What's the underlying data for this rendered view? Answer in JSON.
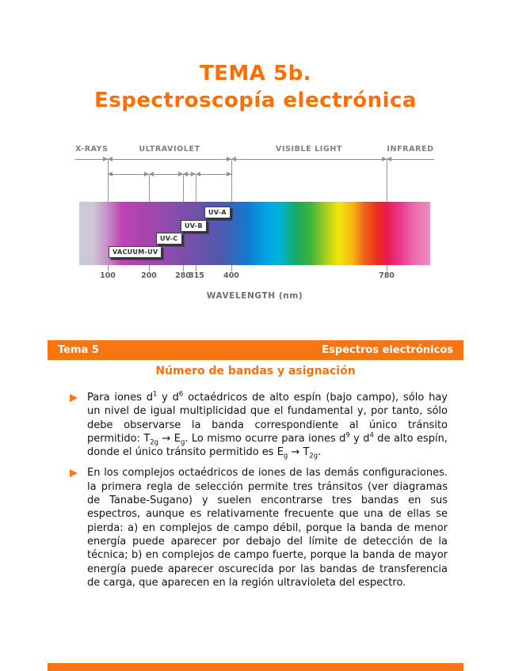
{
  "colors": {
    "accent_orange": "#f87514",
    "title_orange": "#ff6e05",
    "diagram_gray": "#8f8f93"
  },
  "title": {
    "line1": "TEMA 5b.",
    "line2": "Espectroscopía electrónica"
  },
  "spectrum": {
    "region_labels": [
      "X-RAYS",
      "ULTRAVIOLET",
      "VISIBLE LIGHT",
      "INFRARED"
    ],
    "uv_bands": [
      "VACUUM-UV",
      "UV-C",
      "UV-B",
      "UV-A"
    ],
    "ticks": [
      "100",
      "200",
      "280",
      "315",
      "400",
      "780"
    ],
    "caption": "WAVELENGTH (nm)"
  },
  "section_bar": {
    "left": "Tema 5",
    "right": "Espectros electrónicos"
  },
  "section_heading": "Número de bandas y asignación",
  "bullets": [
    {
      "segments": [
        {
          "t": "Para iones d"
        },
        {
          "t": "1",
          "s": "sup"
        },
        {
          "t": " y d"
        },
        {
          "t": "6",
          "s": "sup"
        },
        {
          "t": " octaédricos de alto espín (bajo campo), sólo hay un nivel de igual multiplicidad que el fundamental y, por tanto, sólo debe observarse la banda correspondiente al único tránsito permitido: T"
        },
        {
          "t": "2g",
          "s": "sub"
        },
        {
          "t": " → E"
        },
        {
          "t": "g",
          "s": "sub"
        },
        {
          "t": ". Lo mismo ocurre para iones d"
        },
        {
          "t": "9",
          "s": "sup"
        },
        {
          "t": " y d"
        },
        {
          "t": "4",
          "s": "sup"
        },
        {
          "t": " de alto espín, donde el único tránsito permitido es E"
        },
        {
          "t": "g",
          "s": "sub"
        },
        {
          "t": " → T"
        },
        {
          "t": "2g",
          "s": "sub"
        },
        {
          "t": "."
        }
      ]
    },
    {
      "segments": [
        {
          "t": "En los complejos octaédricos de iones de las demás configuraciones. la primera regla de selección permite tres tránsitos (ver diagramas de Tanabe-Sugano) y suelen encontrarse tres bandas en sus espectros, aunque es relativamente frecuente que una de ellas se pierda: a) en complejos de campo débil, porque la banda de menor energía puede aparecer por debajo del límite de detección de la técnica; b) en complejos de campo fuerte, porque la banda de mayor energía puede aparecer oscurecida por las bandas de transferencia de carga, que aparecen en la región ultravioleta del espectro."
        }
      ]
    }
  ]
}
